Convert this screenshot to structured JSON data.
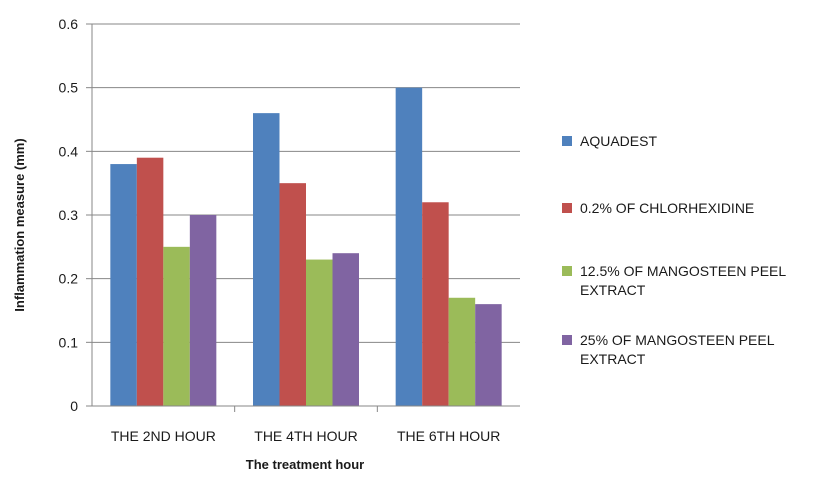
{
  "chart_data": {
    "type": "bar",
    "title": "",
    "xlabel": "The treatment hour",
    "ylabel": "Inflammation  measure (mm)",
    "ylim": [
      0,
      0.6
    ],
    "yticks": [
      "0",
      "0.1",
      "0.2",
      "0.3",
      "0.4",
      "0.5",
      "0.6"
    ],
    "grid": true,
    "legend_position": "right",
    "categories": [
      "THE 2ND HOUR",
      "THE 4TH HOUR",
      "THE 6TH HOUR"
    ],
    "series": [
      {
        "name": "AQUADEST",
        "color": "#4f81bd",
        "values": [
          0.38,
          0.46,
          0.5
        ]
      },
      {
        "name": "0.2% OF CHLORHEXIDINE",
        "color": "#c0504d",
        "values": [
          0.39,
          0.35,
          0.32
        ]
      },
      {
        "name": "12.5% OF MANGOSTEEN PEEL EXTRACT",
        "color": "#9bbb59",
        "values": [
          0.25,
          0.23,
          0.17
        ]
      },
      {
        "name": "25% OF MANGOSTEEN PEEL EXTRACT",
        "color": "#8064a2",
        "values": [
          0.3,
          0.24,
          0.16
        ]
      }
    ]
  }
}
